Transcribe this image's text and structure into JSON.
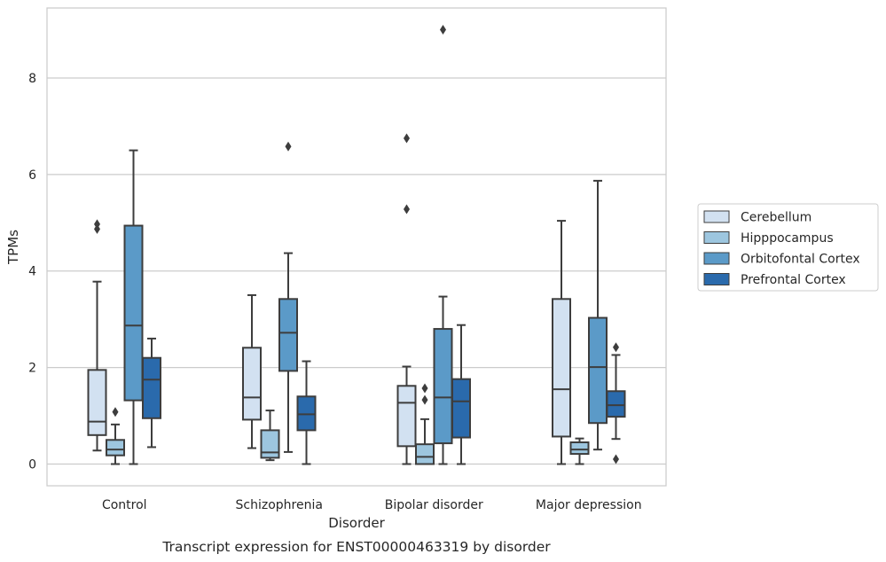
{
  "chart_data": {
    "type": "boxplot",
    "xlabel": "Disorder",
    "ylabel": "TPMs",
    "caption": "Transcript expression for ENST00000463319 by disorder",
    "ylim": [
      -0.45,
      9.45
    ],
    "yticks": [
      0,
      2,
      4,
      6,
      8
    ],
    "grid": "horizontal",
    "legend_position": "right",
    "categories": [
      "Control",
      "Schizophrenia",
      "Bipolar disorder",
      "Major depression"
    ],
    "series": [
      {
        "name": "Cerebellum",
        "color": "#d2e1f1",
        "boxes": [
          {
            "whislo": 0.28,
            "q1": 0.6,
            "med": 0.88,
            "q3": 1.95,
            "whishi": 3.78,
            "fliers": [
              4.87,
              4.97
            ]
          },
          {
            "whislo": 0.33,
            "q1": 0.92,
            "med": 1.38,
            "q3": 2.41,
            "whishi": 3.5,
            "fliers": []
          },
          {
            "whislo": 0.0,
            "q1": 0.37,
            "med": 1.27,
            "q3": 1.62,
            "whishi": 2.02,
            "fliers": [
              5.28,
              6.75
            ]
          },
          {
            "whislo": 0.0,
            "q1": 0.57,
            "med": 1.55,
            "q3": 3.42,
            "whishi": 5.04,
            "fliers": []
          }
        ]
      },
      {
        "name": "Hipppocampus",
        "color": "#9dc6df",
        "boxes": [
          {
            "whislo": 0.0,
            "q1": 0.18,
            "med": 0.3,
            "q3": 0.5,
            "whishi": 0.82,
            "fliers": [
              1.08
            ]
          },
          {
            "whislo": 0.08,
            "q1": 0.13,
            "med": 0.24,
            "q3": 0.7,
            "whishi": 1.11,
            "fliers": []
          },
          {
            "whislo": 0.0,
            "q1": 0.0,
            "med": 0.15,
            "q3": 0.41,
            "whishi": 0.93,
            "fliers": [
              1.33,
              1.57
            ]
          },
          {
            "whislo": 0.0,
            "q1": 0.21,
            "med": 0.3,
            "q3": 0.45,
            "whishi": 0.53,
            "fliers": []
          }
        ]
      },
      {
        "name": "Orbitofontal Cortex",
        "color": "#5b9ac8",
        "boxes": [
          {
            "whislo": 0.0,
            "q1": 1.32,
            "med": 2.87,
            "q3": 4.94,
            "whishi": 6.5,
            "fliers": []
          },
          {
            "whislo": 0.25,
            "q1": 1.93,
            "med": 2.72,
            "q3": 3.42,
            "whishi": 4.37,
            "fliers": [
              6.58
            ]
          },
          {
            "whislo": 0.0,
            "q1": 0.43,
            "med": 1.38,
            "q3": 2.8,
            "whishi": 3.47,
            "fliers": [
              9.0
            ]
          },
          {
            "whislo": 0.3,
            "q1": 0.85,
            "med": 2.01,
            "q3": 3.03,
            "whishi": 5.87,
            "fliers": []
          }
        ]
      },
      {
        "name": "Prefrontal Cortex",
        "color": "#2a6aac",
        "boxes": [
          {
            "whislo": 0.35,
            "q1": 0.95,
            "med": 1.75,
            "q3": 2.2,
            "whishi": 2.6,
            "fliers": []
          },
          {
            "whislo": 0.0,
            "q1": 0.7,
            "med": 1.03,
            "q3": 1.4,
            "whishi": 2.13,
            "fliers": []
          },
          {
            "whislo": 0.0,
            "q1": 0.55,
            "med": 1.3,
            "q3": 1.76,
            "whishi": 2.88,
            "fliers": []
          },
          {
            "whislo": 0.52,
            "q1": 0.98,
            "med": 1.22,
            "q3": 1.51,
            "whishi": 2.26,
            "fliers": [
              0.1,
              2.42
            ]
          }
        ]
      }
    ]
  }
}
